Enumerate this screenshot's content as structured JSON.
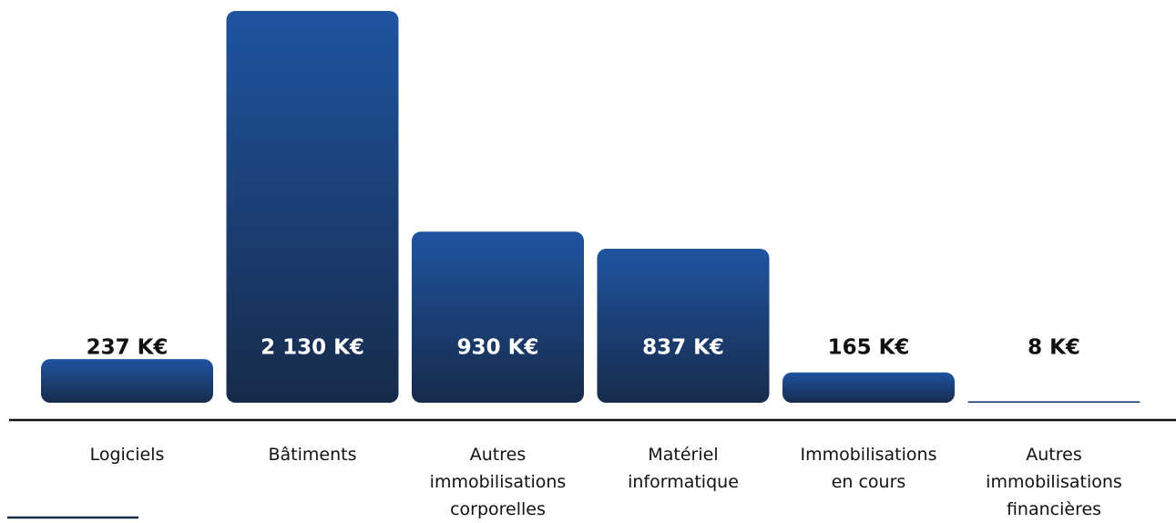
{
  "chart_data": {
    "type": "bar",
    "categories": [
      "Logiciels",
      "Bâtiments",
      "Autres immobilisations corporelles",
      "Matériel informatique",
      "Immobilisations en cours",
      "Autres immobilisations financières"
    ],
    "values": [
      237,
      2130,
      930,
      837,
      165,
      8
    ],
    "value_labels": [
      "237 K€",
      "2 130 K€",
      "930 K€",
      "837 K€",
      "165 K€",
      "8 K€"
    ],
    "color": "#1f54a0"
  }
}
